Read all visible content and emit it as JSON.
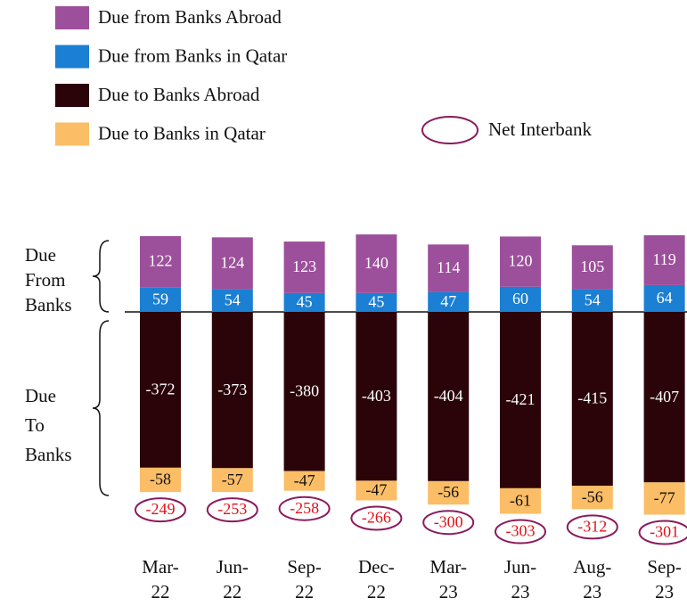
{
  "chart_data": {
    "type": "stacked_bar",
    "categories": [
      "Mar-\n22",
      "Jun-\n22",
      "Sep-\n22",
      "Dec-\n22",
      "Mar-\n23",
      "Jun-\n23",
      "Aug-\n23",
      "Sep-\n23"
    ],
    "series": [
      {
        "name": "Due from Banks Abroad",
        "color": "#9c4f9b",
        "values": [
          122,
          124,
          123,
          140,
          114,
          120,
          105,
          119
        ]
      },
      {
        "name": "Due from Banks in Qatar",
        "color": "#1b7fd3",
        "values": [
          59,
          54,
          45,
          45,
          47,
          60,
          54,
          64
        ]
      },
      {
        "name": "Due to Banks Abroad",
        "color": "#2b0409",
        "values": [
          -372,
          -373,
          -380,
          -403,
          -404,
          -421,
          -415,
          -407
        ]
      },
      {
        "name": "Due to Banks in Qatar",
        "color": "#fbbd66",
        "values": [
          -58,
          -57,
          -47,
          -47,
          -56,
          -61,
          -56,
          -77
        ]
      }
    ],
    "net": {
      "name": "Net Interbank",
      "color": "#e0121b",
      "values": [
        -249,
        -253,
        -258,
        -266,
        -300,
        -303,
        -312,
        -301
      ]
    },
    "annotations": [
      "Due\nFrom\nBanks",
      "Due\nTo\nBanks"
    ],
    "ylim": [
      -500,
      200
    ]
  }
}
